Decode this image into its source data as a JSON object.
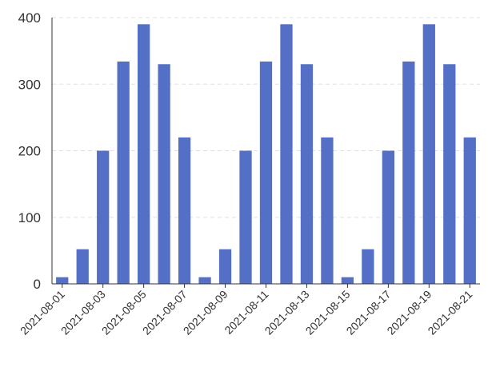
{
  "chart_data": {
    "type": "bar",
    "categories": [
      "2021-08-01",
      "2021-08-02",
      "2021-08-03",
      "2021-08-04",
      "2021-08-05",
      "2021-08-06",
      "2021-08-07",
      "2021-08-08",
      "2021-08-09",
      "2021-08-10",
      "2021-08-11",
      "2021-08-12",
      "2021-08-13",
      "2021-08-14",
      "2021-08-15",
      "2021-08-16",
      "2021-08-17",
      "2021-08-18",
      "2021-08-19",
      "2021-08-20",
      "2021-08-21"
    ],
    "values": [
      10,
      52,
      200,
      334,
      390,
      330,
      220,
      10,
      52,
      200,
      334,
      390,
      330,
      220,
      10,
      52,
      200,
      334,
      390,
      330,
      220
    ],
    "y_ticks": [
      "0",
      "100",
      "200",
      "300",
      "400"
    ],
    "x_tick_labels": [
      "2021-08-01",
      "2021-08-03",
      "2021-08-05",
      "2021-08-07",
      "2021-08-09",
      "2021-08-11",
      "2021-08-13",
      "2021-08-15",
      "2021-08-17",
      "2021-08-19",
      "2021-08-21"
    ],
    "ylim": [
      0,
      400
    ],
    "grid": true,
    "bar_color": "#5470c6",
    "axis_color": "#333333",
    "grid_color": "#e0e0e0",
    "label_color": "#333333"
  }
}
